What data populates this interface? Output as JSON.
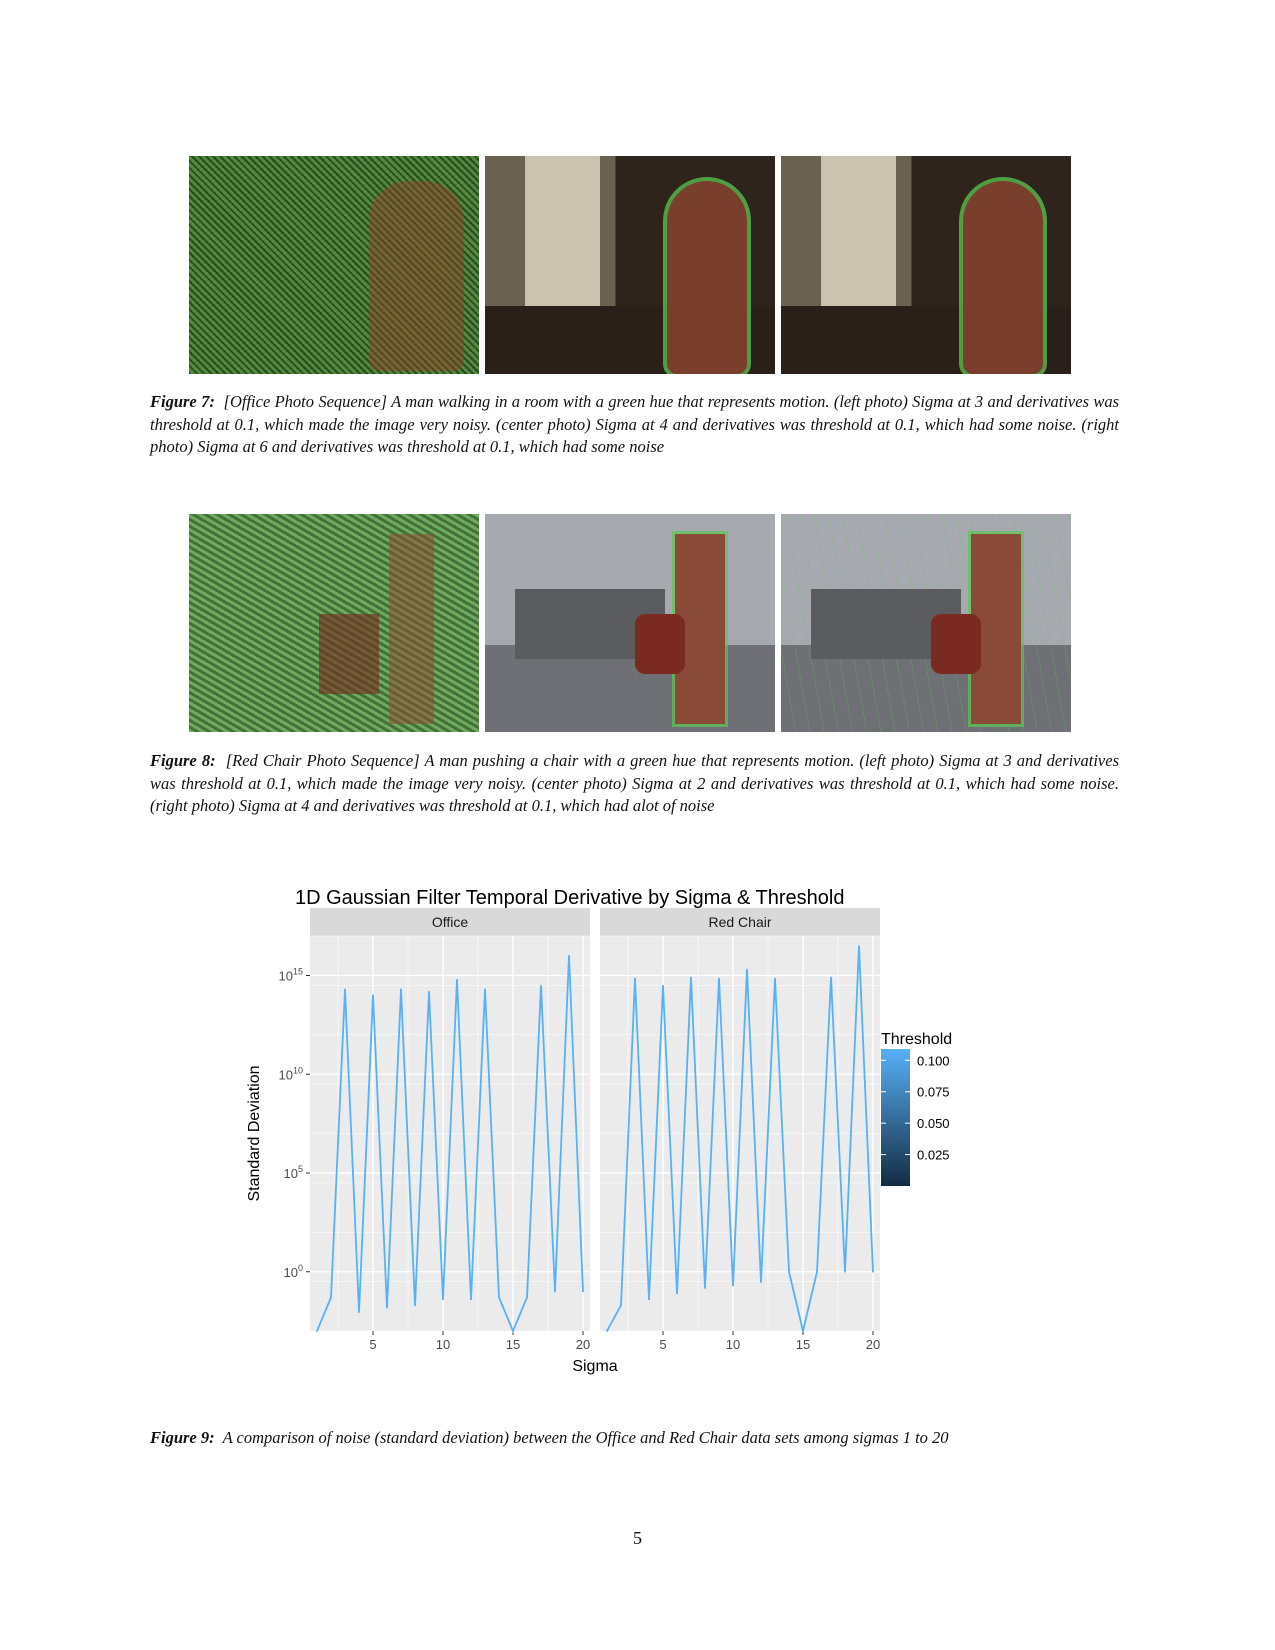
{
  "figure7": {
    "label": "Figure 7:",
    "text": "[Office Photo Sequence] A man walking in a room with a green hue that represents motion. (left photo) Sigma at 3 and derivatives was threshold at 0.1, which made the image very noisy. (center photo) Sigma at 4 and derivatives was threshold at 0.1, which had some noise. (right photo) Sigma at 6 and derivatives was threshold at 0.1, which had some noise"
  },
  "figure8": {
    "label": "Figure 8:",
    "text": "[Red Chair Photo Sequence] A man pushing a chair with a green hue that represents motion. (left photo) Sigma at 3 and derivatives was threshold at 0.1, which made the image very noisy. (center photo) Sigma at 2 and derivatives was threshold at 0.1, which had some noise. (right photo) Sigma at 4 and derivatives was threshold at 0.1, which had alot of noise"
  },
  "figure9": {
    "label": "Figure 9:",
    "text": "A comparison of noise (standard deviation) between the Office and Red Chair data sets among sigmas 1 to 20"
  },
  "page_number": "5",
  "colors": {
    "line": "#56b1f7",
    "panel_bg": "#ebebeb",
    "strip_bg": "#d9d9d9",
    "legend_low": "#132b43",
    "legend_high": "#56b1f7"
  },
  "chart_data": {
    "type": "line",
    "title": "1D Gaussian Filter Temporal Derivative by Sigma & Threshold",
    "xlabel": "Sigma",
    "ylabel": "Standard Deviation",
    "yscale": "log10",
    "ylim": [
      0.001,
      1e+17
    ],
    "xlim": [
      0.5,
      20.5
    ],
    "x_ticks": [
      5,
      10,
      15,
      20
    ],
    "y_ticks": [
      {
        "value": 1,
        "base": "10",
        "exp": "0"
      },
      {
        "value": 100000.0,
        "base": "10",
        "exp": "5"
      },
      {
        "value": 10000000000.0,
        "base": "10",
        "exp": "10"
      },
      {
        "value": 1000000000000000.0,
        "base": "10",
        "exp": "15"
      }
    ],
    "grid": true,
    "legend": {
      "title": "Threshold",
      "type": "colorbar",
      "position": "right",
      "labels": [
        "0.100",
        "0.075",
        "0.050",
        "0.025"
      ],
      "values": [
        0.1,
        0.075,
        0.05,
        0.025
      ]
    },
    "panels": [
      {
        "name": "Office",
        "x": [
          1,
          2,
          3,
          4,
          5,
          6,
          7,
          8,
          9,
          10,
          11,
          12,
          13,
          14,
          15,
          16,
          17,
          18,
          19,
          20
        ],
        "values": [
          0.001,
          0.05,
          200000000000000.0,
          0.009,
          100000000000000.0,
          0.015,
          200000000000000.0,
          0.02,
          150000000000000.0,
          0.04,
          600000000000000.0,
          0.04,
          200000000000000.0,
          0.05,
          0.001,
          0.05,
          300000000000000.0,
          0.1,
          1e+16,
          0.1
        ],
        "threshold": 0.1
      },
      {
        "name": "Red Chair",
        "x": [
          1,
          2,
          3,
          4,
          5,
          6,
          7,
          8,
          9,
          10,
          11,
          12,
          13,
          14,
          15,
          16,
          17,
          18,
          19,
          20
        ],
        "values": [
          0.001,
          0.02,
          700000000000000.0,
          0.04,
          300000000000000.0,
          0.08,
          800000000000000.0,
          0.15,
          700000000000000.0,
          0.2,
          2000000000000000.0,
          0.3,
          700000000000000.0,
          1,
          0.001,
          1,
          800000000000000.0,
          1,
          3e+16,
          1
        ],
        "threshold": 0.1
      }
    ]
  }
}
